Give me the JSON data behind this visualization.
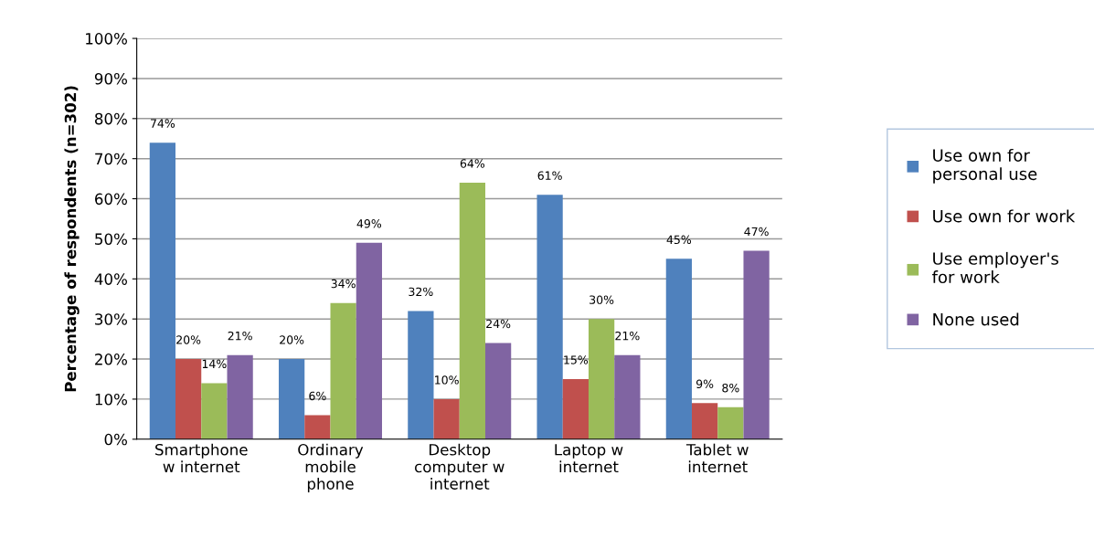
{
  "chart_data": {
    "type": "bar",
    "ylabel": "Percentage of respondents (n=302)",
    "categories": [
      "Smartphone\nw internet",
      "Ordinary\nmobile\nphone",
      "Desktop\ncomputer w\ninternet",
      "Laptop w\ninternet",
      "Tablet w\ninternet"
    ],
    "series": [
      {
        "name": "Use own for\npersonal use",
        "color": "#4f81bd",
        "values": [
          74,
          20,
          32,
          61,
          45
        ],
        "value_labels": [
          "74%",
          "20%",
          "32%",
          "61%",
          "45%"
        ]
      },
      {
        "name": "Use own for work",
        "color": "#c0504d",
        "values": [
          20,
          6,
          10,
          15,
          9
        ],
        "value_labels": [
          "20%",
          "6%",
          "10%",
          "15%",
          "9%"
        ]
      },
      {
        "name": "Use employer's\nfor work",
        "color": "#9bbb59",
        "values": [
          14,
          34,
          64,
          30,
          8
        ],
        "value_labels": [
          "14%",
          "34%",
          "64%",
          "30%",
          "8%"
        ]
      },
      {
        "name": "None used",
        "color": "#8064a2",
        "values": [
          21,
          49,
          24,
          21,
          47
        ],
        "value_labels": [
          "21%",
          "49%",
          "24%",
          "21%",
          "47%"
        ]
      }
    ],
    "ylim": [
      0,
      100
    ],
    "yticks": [
      {
        "value": 0,
        "label": "0%"
      },
      {
        "value": 10,
        "label": "10%"
      },
      {
        "value": 20,
        "label": "20%"
      },
      {
        "value": 30,
        "label": "30%"
      },
      {
        "value": 40,
        "label": "40%"
      },
      {
        "value": 50,
        "label": "50%"
      },
      {
        "value": 60,
        "label": "60%"
      },
      {
        "value": 70,
        "label": "70%"
      },
      {
        "value": 80,
        "label": "80%"
      },
      {
        "value": 90,
        "label": "90%"
      },
      {
        "value": 100,
        "label": "100%"
      }
    ],
    "grid": "y",
    "legend": "right"
  }
}
